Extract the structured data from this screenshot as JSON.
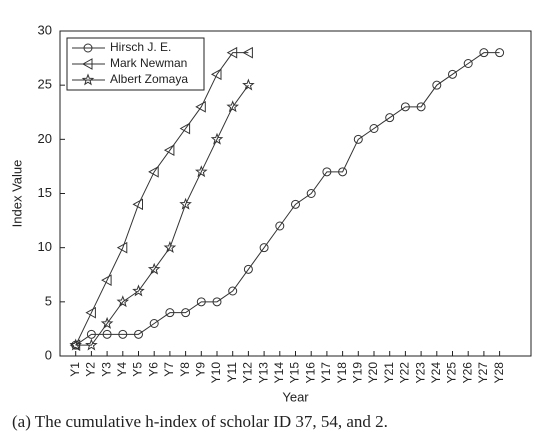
{
  "chart_data": {
    "type": "line",
    "caption": "(a) The cumulative h-index of scholar ID 37, 54, and 2.",
    "xlabel": "Year",
    "ylabel": "Index Value",
    "categories": [
      "Y1",
      "Y2",
      "Y3",
      "Y4",
      "Y5",
      "Y6",
      "Y7",
      "Y8",
      "Y9",
      "Y10",
      "Y11",
      "Y12",
      "Y13",
      "Y14",
      "Y15",
      "Y16",
      "Y17",
      "Y18",
      "Y19",
      "Y20",
      "Y21",
      "Y22",
      "Y23",
      "Y24",
      "Y25",
      "Y26",
      "Y27",
      "Y28"
    ],
    "series": [
      {
        "name": "Hirsch J. E.",
        "color": "#333333",
        "marker": "circle",
        "values": [
          1,
          2,
          2,
          2,
          2,
          3,
          4,
          4,
          5,
          5,
          6,
          8,
          10,
          12,
          14,
          15,
          17,
          17,
          20,
          21,
          22,
          23,
          23,
          25,
          26,
          27,
          28,
          28
        ]
      },
      {
        "name": "Mark Newman",
        "color": "#333333",
        "marker": "triangle-left",
        "values": [
          1,
          4,
          7,
          10,
          14,
          17,
          19,
          21,
          23,
          26,
          28,
          28,
          null,
          null,
          null,
          null,
          null,
          null,
          null,
          null,
          null,
          null,
          null,
          null,
          null,
          null,
          null,
          null
        ]
      },
      {
        "name": "Albert Zomaya",
        "color": "#333333",
        "marker": "star",
        "values": [
          1,
          1,
          3,
          5,
          6,
          8,
          10,
          14,
          17,
          20,
          23,
          25,
          null,
          null,
          null,
          null,
          null,
          null,
          null,
          null,
          null,
          null,
          null,
          null,
          null,
          null,
          null,
          null
        ]
      }
    ],
    "ylim": [
      0,
      30
    ],
    "yticks": [
      0,
      5,
      10,
      15,
      20,
      25,
      30
    ],
    "legend": "upper left"
  }
}
